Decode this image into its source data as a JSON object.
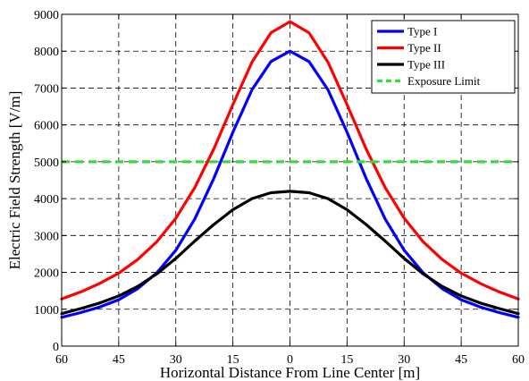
{
  "chart_data": {
    "type": "line",
    "xlabel": "Horizontal Distance From Line Center [m]",
    "ylabel": "Electric Field Strength [V/m]",
    "xlim": [
      -60,
      60
    ],
    "ylim": [
      0,
      9000
    ],
    "grid": true,
    "grid_style": "dashed",
    "legend_position": "top-right",
    "x_ticks": [
      -60,
      -45,
      -30,
      -15,
      0,
      15,
      30,
      45,
      60
    ],
    "x_tick_labels": [
      "60",
      "45",
      "30",
      "15",
      "0",
      "15",
      "30",
      "45",
      "60"
    ],
    "y_ticks": [
      0,
      1000,
      2000,
      3000,
      4000,
      5000,
      6000,
      7000,
      8000,
      9000
    ],
    "y_tick_labels": [
      "0",
      "1000",
      "2000",
      "3000",
      "4000",
      "5000",
      "6000",
      "7000",
      "8000",
      "9000"
    ],
    "x": [
      -60,
      -55,
      -50,
      -45,
      -40,
      -35,
      -30,
      -25,
      -20,
      -15,
      -10,
      -5,
      0,
      5,
      10,
      15,
      20,
      25,
      30,
      35,
      40,
      45,
      50,
      55,
      60
    ],
    "series": [
      {
        "name": "Type I",
        "color": "#0000ff",
        "values": [
          780,
          910,
          1060,
          1260,
          1560,
          1990,
          2600,
          3450,
          4550,
          5800,
          6950,
          7720,
          8000,
          7720,
          6950,
          5800,
          4550,
          3450,
          2600,
          1990,
          1560,
          1260,
          1060,
          910,
          780
        ]
      },
      {
        "name": "Type II",
        "color": "#ff0000",
        "values": [
          1280,
          1470,
          1700,
          1980,
          2350,
          2830,
          3470,
          4300,
          5350,
          6550,
          7700,
          8500,
          8800,
          8500,
          7700,
          6550,
          5350,
          4300,
          3470,
          2830,
          2350,
          1980,
          1700,
          1470,
          1280
        ]
      },
      {
        "name": "Type III",
        "color": "#000000",
        "values": [
          880,
          1020,
          1170,
          1360,
          1620,
          1960,
          2380,
          2850,
          3300,
          3700,
          4000,
          4160,
          4200,
          4160,
          4000,
          3700,
          3300,
          2850,
          2380,
          1960,
          1620,
          1360,
          1170,
          1020,
          880
        ]
      },
      {
        "name": "Exposure Limit",
        "color": "#33dd33",
        "dashed": true,
        "values": [
          5000,
          5000,
          5000,
          5000,
          5000,
          5000,
          5000,
          5000,
          5000,
          5000,
          5000,
          5000,
          5000,
          5000,
          5000,
          5000,
          5000,
          5000,
          5000,
          5000,
          5000,
          5000,
          5000,
          5000,
          5000
        ]
      }
    ]
  }
}
